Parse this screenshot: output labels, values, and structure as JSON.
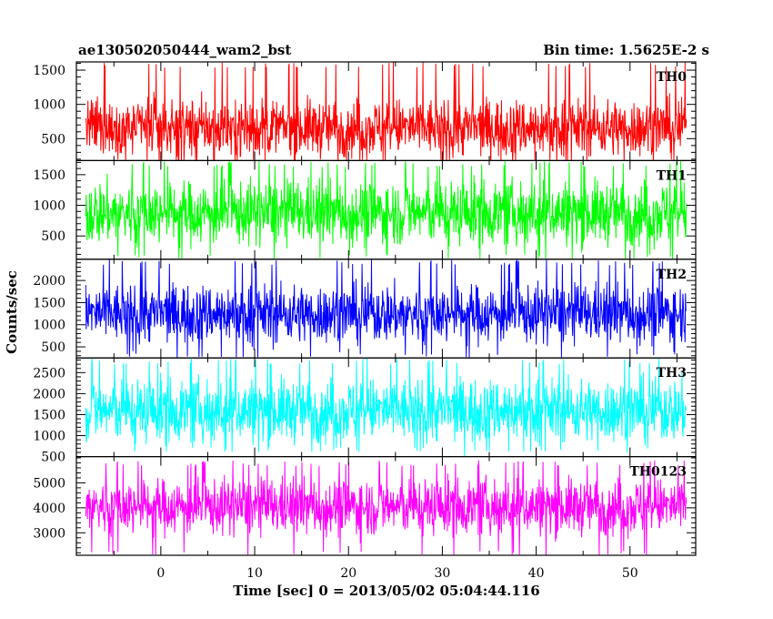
{
  "header": {
    "left": "ae130502050444_wam2_bst",
    "right": "Bin time: 1.5625E-2 s"
  },
  "chart_data": {
    "type": "line",
    "xlabel": "Time [sec] 0 = 2013/05/02 05:04:44.116",
    "ylabel": "Counts/sec",
    "xlim": [
      -9,
      57
    ],
    "x_data_range": [
      -8,
      56
    ],
    "xticks": [
      0,
      10,
      20,
      30,
      40,
      50
    ],
    "xtick_labels": [
      "0",
      "10",
      "20",
      "30",
      "40",
      "50"
    ],
    "grid": false,
    "legend": "none",
    "panels": [
      {
        "name": "TH0",
        "color": "#ff0000",
        "ylim": [
          180,
          1620
        ],
        "yticks": [
          500,
          1000,
          1500
        ],
        "ytick_labels": [
          "500",
          "1000",
          "1500"
        ],
        "base": 660,
        "spread": 210,
        "burst_high": 1620,
        "burst_low": 130
      },
      {
        "name": "TH1",
        "color": "#00ff00",
        "ylim": [
          120,
          1730
        ],
        "yticks": [
          500,
          1000,
          1500
        ],
        "ytick_labels": [
          "500",
          "1000",
          "1500"
        ],
        "base": 880,
        "spread": 260,
        "burst_high": 1730,
        "burst_low": 120
      },
      {
        "name": "TH2",
        "color": "#0000ff",
        "ylim": [
          250,
          2480
        ],
        "yticks": [
          500,
          1000,
          1500,
          2000
        ],
        "ytick_labels": [
          "500",
          "1000",
          "1500",
          "2000"
        ],
        "base": 1250,
        "spread": 330,
        "burst_high": 2480,
        "burst_low": 250
      },
      {
        "name": "TH3",
        "color": "#00ffff",
        "ylim": [
          500,
          2850
        ],
        "yticks": [
          500,
          1000,
          1500,
          2000,
          2500
        ],
        "ytick_labels": [
          "500",
          "1000",
          "1500",
          "2000",
          "2500"
        ],
        "base": 1600,
        "spread": 380,
        "burst_high": 2850,
        "burst_low": 600
      },
      {
        "name": "TH0123",
        "color": "#ff00ff",
        "ylim": [
          2100,
          6050
        ],
        "yticks": [
          3000,
          4000,
          5000
        ],
        "ytick_labels": [
          "3000",
          "4000",
          "5000"
        ],
        "base": 4050,
        "spread": 560,
        "burst_high": 5900,
        "burst_low": 2100
      }
    ]
  }
}
